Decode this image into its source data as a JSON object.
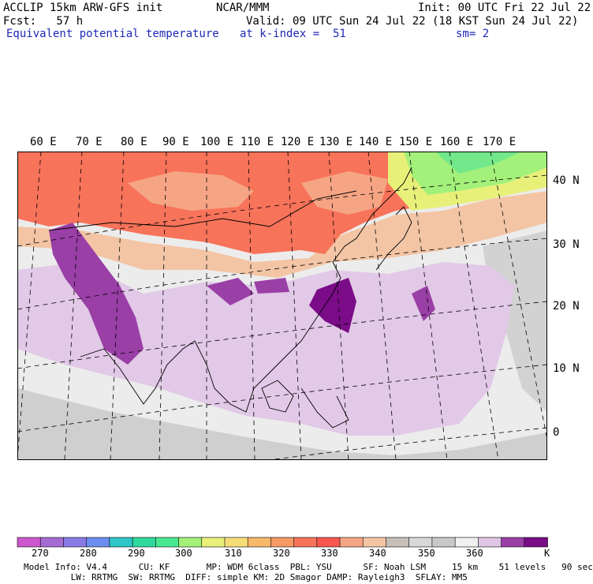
{
  "header": {
    "model": "ACCLIP 15km ARW-GFS init",
    "org": "NCAR/MMM",
    "init": "Init: 00 UTC Fri 22 Jul 22",
    "fcst": "Fcst:   57 h",
    "valid": "Valid: 09 UTC Sun 24 Jul 22 (18 KST Sun 24 Jul 22)",
    "field": "Equivalent potential temperature",
    "level": "at k-index =  51",
    "smooth": "sm= 2"
  },
  "map": {
    "lon_labels": [
      "60 E",
      "70 E",
      "80 E",
      "90 E",
      "100 E",
      "110 E",
      "120 E",
      "130 E",
      "140 E",
      "150 E",
      "160 E",
      "170 E"
    ],
    "lat_labels": [
      "40 N",
      "30 N",
      "20 N",
      "10 N",
      "0"
    ]
  },
  "colorbar": {
    "colors": [
      "#cd58cd",
      "#a66cd5",
      "#8a7ae6",
      "#6c8ef0",
      "#2ec6c6",
      "#2fd89c",
      "#48e891",
      "#a3f07a",
      "#e8f07a",
      "#f6dd78",
      "#f7b86a",
      "#f79a66",
      "#f7735a",
      "#f7574d",
      "#f6a584",
      "#f3c5a5",
      "#c6c0b8",
      "#d8d8d8",
      "#c9c9c9",
      "#f1f1f1",
      "#e0c6e6",
      "#9a3fa6",
      "#7a0c87"
    ],
    "labels": [
      "270",
      "280",
      "290",
      "300",
      "310",
      "320",
      "330",
      "340",
      "350",
      "360"
    ],
    "unit": "K"
  },
  "footer": {
    "line1": "Model Info: V4.4      CU: KF       MP: WDM 6class  PBL: YSU      SF: Noah LSM     15 km    51 levels   90 sec",
    "line2": "         LW: RRTMG  SW: RRTMG  DIFF: simple KM: 2D Smagor DAMP: Rayleigh3  SFLAY: MM5"
  }
}
